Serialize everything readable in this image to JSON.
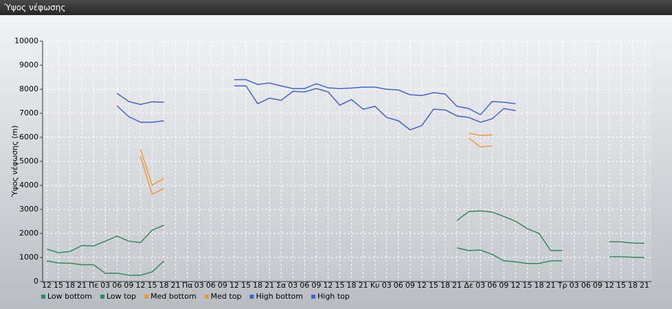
{
  "header": {
    "title": "Ύψος νέφωσης"
  },
  "chart_data": {
    "type": "line",
    "y_label": "Ύψος νέφωσης (m)",
    "categories": [
      "12",
      "15",
      "18",
      "21",
      "Πε",
      "03",
      "06",
      "09",
      "12",
      "15",
      "18",
      "21",
      "Πα",
      "03",
      "06",
      "09",
      "12",
      "15",
      "18",
      "21",
      "Σα",
      "03",
      "06",
      "09",
      "12",
      "15",
      "18",
      "21",
      "Κυ",
      "03",
      "06",
      "09",
      "12",
      "15",
      "18",
      "21",
      "Δε",
      "03",
      "06",
      "09",
      "12",
      "15",
      "18",
      "21",
      "Τρ",
      "03",
      "06",
      "09",
      "12",
      "15",
      "18",
      "21"
    ],
    "ylim": [
      0,
      10000
    ],
    "yticks": [
      0,
      1000,
      2000,
      3000,
      4000,
      5000,
      6000,
      7000,
      8000,
      9000,
      10000
    ],
    "grid": true,
    "series": [
      {
        "name": "Low bottom",
        "color": "#2e8b57",
        "values": [
          860,
          770,
          760,
          700,
          700,
          340,
          350,
          260,
          260,
          400,
          860,
          null,
          null,
          null,
          null,
          null,
          null,
          null,
          null,
          null,
          null,
          null,
          null,
          null,
          null,
          null,
          null,
          null,
          null,
          null,
          null,
          null,
          null,
          null,
          null,
          1400,
          1290,
          1310,
          1130,
          860,
          820,
          750,
          750,
          860,
          860,
          null,
          null,
          null,
          1030,
          1030,
          1010,
          1000
        ]
      },
      {
        "name": "Low top",
        "color": "#2e8b57",
        "values": [
          1350,
          1200,
          1250,
          1500,
          1480,
          1680,
          1890,
          1680,
          1620,
          2140,
          2340,
          null,
          null,
          null,
          null,
          null,
          null,
          null,
          null,
          null,
          null,
          null,
          null,
          null,
          null,
          null,
          null,
          null,
          null,
          null,
          null,
          null,
          null,
          null,
          null,
          2540,
          2910,
          2940,
          2890,
          2710,
          2510,
          2200,
          2000,
          1290,
          1290,
          null,
          null,
          null,
          1660,
          1650,
          1600,
          1590
        ]
      },
      {
        "name": "Med bottom",
        "color": "#ee9a3a",
        "values": [
          null,
          null,
          null,
          null,
          null,
          null,
          null,
          null,
          5200,
          3630,
          3880,
          null,
          null,
          null,
          null,
          null,
          null,
          null,
          null,
          null,
          null,
          null,
          null,
          null,
          null,
          null,
          null,
          null,
          null,
          null,
          null,
          null,
          null,
          null,
          null,
          null,
          5970,
          5600,
          5650,
          null,
          null,
          null,
          null,
          null,
          null,
          null,
          null,
          null,
          null,
          null,
          null,
          null
        ]
      },
      {
        "name": "Med top",
        "color": "#ee9a3a",
        "values": [
          null,
          null,
          null,
          null,
          null,
          null,
          null,
          null,
          5500,
          4000,
          4300,
          null,
          null,
          null,
          null,
          null,
          null,
          null,
          null,
          null,
          null,
          null,
          null,
          null,
          null,
          null,
          null,
          null,
          null,
          null,
          null,
          null,
          null,
          null,
          null,
          null,
          6170,
          6080,
          6100,
          null,
          null,
          null,
          null,
          null,
          null,
          null,
          null,
          null,
          null,
          null,
          null,
          null
        ]
      },
      {
        "name": "High bottom",
        "color": "#3c64d4",
        "values": [
          null,
          null,
          null,
          null,
          null,
          null,
          7310,
          6860,
          6630,
          6630,
          6690,
          null,
          null,
          null,
          null,
          null,
          8140,
          8140,
          7400,
          7630,
          7540,
          7910,
          7890,
          8030,
          7890,
          7340,
          7570,
          7170,
          7290,
          6830,
          6690,
          6310,
          6490,
          7170,
          7140,
          6890,
          6830,
          6630,
          6770,
          7200,
          7110,
          null,
          null,
          null,
          null,
          null,
          null,
          null,
          null,
          null,
          null,
          null
        ]
      },
      {
        "name": "High top",
        "color": "#3c64d4",
        "values": [
          null,
          null,
          null,
          null,
          null,
          null,
          7830,
          7490,
          7370,
          7480,
          7460,
          null,
          null,
          null,
          null,
          null,
          8400,
          8400,
          8200,
          8260,
          8140,
          8030,
          8030,
          8230,
          8060,
          8030,
          8050,
          8090,
          8090,
          8000,
          7970,
          7770,
          7740,
          7860,
          7800,
          7290,
          7200,
          6940,
          7490,
          7460,
          7400,
          null,
          null,
          null,
          null,
          null,
          null,
          null,
          null,
          null,
          null,
          null
        ]
      }
    ]
  }
}
